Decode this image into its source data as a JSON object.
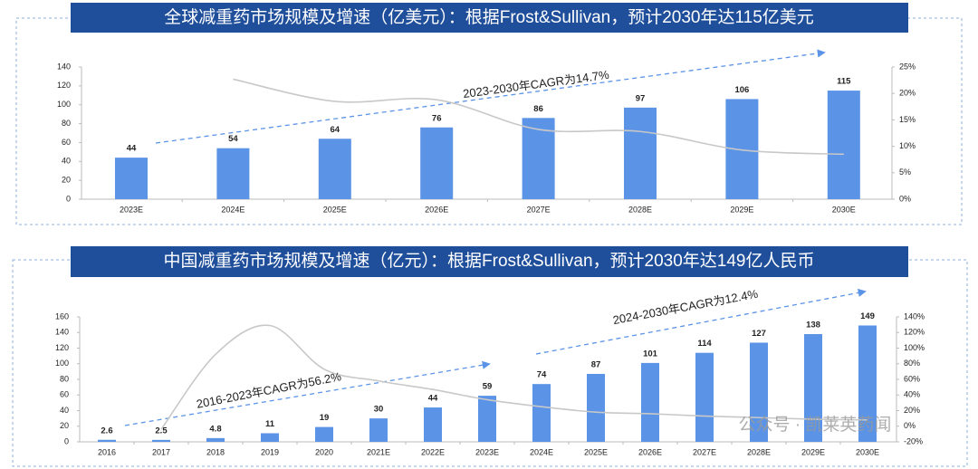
{
  "chart_data": [
    {
      "type": "bar",
      "title": "全球减重药市场规模及增速（亿美元）：根据Frost&Sullivan，预计2030年达115亿美元",
      "categories": [
        "2023E",
        "2024E",
        "2025E",
        "2026E",
        "2027E",
        "2028E",
        "2029E",
        "2030E"
      ],
      "series": [
        {
          "name": "市场规模",
          "color": "#5b93e6",
          "values": [
            44,
            54,
            64,
            76,
            86,
            97,
            106,
            115
          ]
        },
        {
          "name": "增速",
          "type": "line",
          "axis": "y2",
          "color": "#c8c8c8",
          "values": [
            null,
            22.7,
            18.5,
            18.8,
            13.2,
            12.8,
            9.3,
            8.5
          ]
        }
      ],
      "ylim": [
        0,
        140
      ],
      "yticks": [
        0,
        20,
        40,
        60,
        80,
        100,
        120,
        140
      ],
      "y2lim": [
        0,
        25
      ],
      "y2ticks": [
        {
          "value": 0,
          "label": "0%"
        },
        {
          "value": 5,
          "label": "5%"
        },
        {
          "value": 10,
          "label": "10%"
        },
        {
          "value": 15,
          "label": "15%"
        },
        {
          "value": 20,
          "label": "20%"
        },
        {
          "value": 25,
          "label": "25%"
        }
      ],
      "annotations": [
        "2023-2030年CAGR为14.7%"
      ]
    },
    {
      "type": "bar",
      "title": "中国减重药市场规模及增速（亿元）：根据Frost&Sullivan，预计2030年达149亿人民币",
      "categories": [
        "2016",
        "2017",
        "2018",
        "2019",
        "2020",
        "2021E",
        "2022E",
        "2023E",
        "2024E",
        "2025E",
        "2026E",
        "2027E",
        "2028E",
        "2029E",
        "2030E"
      ],
      "series": [
        {
          "name": "市场规模",
          "color": "#5b93e6",
          "values": [
            2.6,
            2.5,
            4.8,
            11,
            19,
            30,
            44,
            59,
            74,
            87,
            101,
            114,
            127,
            138,
            149
          ]
        },
        {
          "name": "增速",
          "type": "line",
          "axis": "y2",
          "color": "#c8c8c8",
          "values": [
            null,
            -4,
            92,
            129,
            73,
            58,
            47,
            34,
            25,
            18,
            16,
            13,
            11,
            9,
            8
          ]
        }
      ],
      "ylim": [
        0,
        160
      ],
      "yticks": [
        0,
        20,
        40,
        60,
        80,
        100,
        120,
        140,
        160
      ],
      "y2lim": [
        -20,
        140
      ],
      "y2ticks": [
        {
          "value": -20,
          "label": "-20%"
        },
        {
          "value": 0,
          "label": "0%"
        },
        {
          "value": 20,
          "label": "20%"
        },
        {
          "value": 40,
          "label": "40%"
        },
        {
          "value": 60,
          "label": "60%"
        },
        {
          "value": 80,
          "label": "80%"
        },
        {
          "value": 100,
          "label": "100%"
        },
        {
          "value": 120,
          "label": "120%"
        },
        {
          "value": 140,
          "label": "140%"
        }
      ],
      "annotations": [
        "2016-2023年CAGR为56.2%",
        "2024-2030年CAGR为12.4%"
      ]
    }
  ],
  "watermark": "公众号 · 凯莱英药闻"
}
